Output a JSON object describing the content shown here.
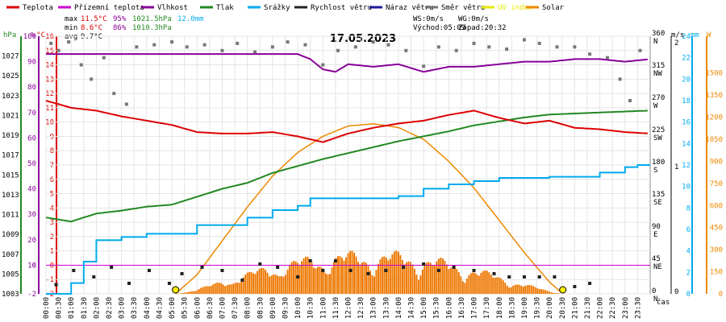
{
  "legend": [
    {
      "label": "Teplota",
      "color": "#dd0000"
    },
    {
      "label": "Přízemní teplota",
      "color": "#cc00cc"
    },
    {
      "label": "Vlhkost",
      "color": "#880099"
    },
    {
      "label": "Tlak",
      "color": "#228822"
    },
    {
      "label": "Srážky",
      "color": "#00aaee"
    },
    {
      "label": "Rychlost větru",
      "color": "#222222"
    },
    {
      "label": "Náraz větru",
      "color": "#1a1a9e"
    },
    {
      "label": "Směr větru",
      "color": "#777777"
    },
    {
      "label": "UV index",
      "color": "#e8e800"
    },
    {
      "label": "Solar",
      "color": "#ee8800"
    }
  ],
  "stats": {
    "max_label": "max",
    "max_temp": "11.5°C",
    "max_hum": "95%",
    "max_press": "1021.5hPa",
    "max_rain": "12.0mm",
    "min_label": "min",
    "min_temp": "8.6°C",
    "min_hum": "86%",
    "min_press": "1010.3hPa",
    "avg_label": "avg",
    "avg_temp": "9.7°C"
  },
  "info": {
    "ws": "WS:0m/s",
    "wg": "WG:0m/s",
    "sunrise": "Východ:05:09",
    "sunset": "Západ:20:32"
  },
  "chart_data": {
    "type": "line",
    "title": "17.05.2023",
    "x_unit_label": "čas",
    "x_ticks": [
      "00:00",
      "00:30",
      "01:00",
      "01:30",
      "02:00",
      "02:30",
      "03:00",
      "03:30",
      "04:00",
      "04:30",
      "05:00",
      "05:30",
      "06:00",
      "06:30",
      "07:00",
      "07:30",
      "08:00",
      "08:30",
      "09:00",
      "09:30",
      "10:00",
      "10:30",
      "11:00",
      "11:30",
      "12:00",
      "12:30",
      "13:00",
      "13:30",
      "14:00",
      "14:30",
      "15:00",
      "15:30",
      "16:00",
      "16:30",
      "17:00",
      "17:30",
      "18:00",
      "18:30",
      "19:00",
      "19:30",
      "20:00",
      "20:30",
      "21:00",
      "21:30",
      "22:00",
      "22:30",
      "23:00",
      "23:30"
    ],
    "axes": {
      "pressure": {
        "unit": "hPa",
        "ticks": [
          "1003",
          "1005",
          "1007",
          "1009",
          "1011",
          "1013",
          "1015",
          "1017",
          "1019",
          "1021",
          "1023",
          "1025",
          "1027"
        ],
        "range": [
          1003,
          1029
        ]
      },
      "humidity": {
        "unit": "%",
        "ticks": [
          "-2",
          "0",
          "10",
          "20",
          "30",
          "40",
          "50",
          "60",
          "70",
          "80",
          "90",
          "100"
        ]
      },
      "temperature": {
        "unit": "°C",
        "ticks": [
          "-2",
          "-1",
          "0",
          "1",
          "2",
          "3",
          "4",
          "5",
          "6",
          "7",
          "8",
          "9",
          "10",
          "11",
          "12",
          "13",
          "14",
          "15",
          "16"
        ],
        "range": [
          -2,
          16
        ]
      },
      "wind_dir": {
        "unit": "°",
        "ticks": [
          "0",
          "45",
          "90",
          "135",
          "180",
          "225",
          "270",
          "315",
          "360"
        ],
        "labels": [
          "N",
          "NE",
          "E",
          "SE",
          "S",
          "SW",
          "W",
          "NW",
          "N"
        ],
        "range": [
          0,
          360
        ]
      },
      "wind_speed": {
        "unit": "m/s",
        "ticks": [
          "0",
          "1",
          "2"
        ]
      },
      "rain": {
        "unit": "mm",
        "ticks": [
          "0",
          "2",
          "4",
          "6",
          "8",
          "10",
          "12",
          "14",
          "16",
          "18",
          "20",
          "22",
          "24"
        ],
        "range": [
          0,
          24
        ]
      },
      "solar": {
        "unit": "W",
        "ticks": [
          "0",
          "150",
          "300",
          "450",
          "600",
          "750",
          "900",
          "1050",
          "1200",
          "1350",
          "1500"
        ],
        "range": [
          0,
          1750
        ]
      }
    },
    "series": [
      {
        "name": "Teplota",
        "unit": "°C",
        "color": "#dd0000",
        "x": [
          0,
          1,
          2,
          3,
          4,
          5,
          6,
          7,
          8,
          9,
          10,
          11,
          12,
          13,
          14,
          15,
          16,
          17,
          18,
          19,
          20,
          21,
          22,
          23,
          24
        ],
        "values": [
          11.5,
          11.0,
          10.8,
          10.4,
          10.1,
          9.8,
          9.3,
          9.2,
          9.2,
          9.3,
          9.0,
          8.6,
          9.2,
          9.6,
          9.9,
          10.1,
          10.5,
          10.8,
          10.3,
          9.9,
          10.1,
          9.6,
          9.5,
          9.3,
          9.2
        ]
      },
      {
        "name": "Vlhkost",
        "unit": "%",
        "color": "#880099",
        "x": [
          0,
          2,
          4,
          6,
          8,
          10,
          10.5,
          11,
          11.5,
          12,
          13,
          14,
          15,
          16,
          17,
          18,
          19,
          20,
          21,
          22,
          23,
          24
        ],
        "values": [
          93,
          93,
          93,
          93,
          93,
          93,
          91,
          87,
          86,
          89,
          88,
          89,
          86,
          88,
          88,
          89,
          90,
          90,
          91,
          91,
          90,
          91
        ]
      },
      {
        "name": "Tlak",
        "unit": "hPa",
        "color": "#228822",
        "x": [
          0,
          1,
          2,
          3,
          4,
          5,
          6,
          7,
          8,
          9,
          10,
          11,
          12,
          13,
          14,
          15,
          16,
          17,
          18,
          19,
          20,
          21,
          22,
          23,
          24
        ],
        "values": [
          1010.7,
          1010.3,
          1011.1,
          1011.4,
          1011.8,
          1012.0,
          1012.8,
          1013.6,
          1014.2,
          1015.2,
          1015.9,
          1016.6,
          1017.2,
          1017.8,
          1018.4,
          1018.9,
          1019.4,
          1020.0,
          1020.4,
          1020.8,
          1021.1,
          1021.2,
          1021.3,
          1021.4,
          1021.5
        ]
      },
      {
        "name": "Srážky",
        "unit": "mm",
        "color": "#00aaee",
        "x": [
          0,
          1,
          1.5,
          2,
          3,
          4,
          6,
          8,
          9,
          10,
          10.5,
          11,
          14,
          15,
          16,
          17,
          18,
          20,
          22,
          23,
          23.5,
          24
        ],
        "values": [
          0,
          1,
          3,
          5,
          5.3,
          5.6,
          6.4,
          7.1,
          7.8,
          8.2,
          8.9,
          8.9,
          9.1,
          9.8,
          10.2,
          10.5,
          10.8,
          10.9,
          11.3,
          11.8,
          12.0,
          12.0
        ]
      },
      {
        "name": "Solar",
        "unit": "W",
        "color": "#ee8800",
        "x": [
          5.15,
          6,
          7,
          8,
          9,
          10,
          11,
          12,
          13,
          14,
          15,
          16,
          17,
          18,
          19,
          20,
          20.53
        ],
        "values": [
          0,
          130,
          360,
          590,
          800,
          960,
          1070,
          1140,
          1155,
          1130,
          1050,
          900,
          720,
          500,
          280,
          80,
          0
        ]
      },
      {
        "name": "Směr větru",
        "unit": "°",
        "color": "#777777",
        "x": [
          0.2,
          0.5,
          0.9,
          1.4,
          1.8,
          2.3,
          2.7,
          3.2,
          3.6,
          4.3,
          5.0,
          5.6,
          6.3,
          7.0,
          7.6,
          8.3,
          9.0,
          9.6,
          10.3,
          11.0,
          11.6,
          12.3,
          13.0,
          13.6,
          14.3,
          15.0,
          15.6,
          16.3,
          17.0,
          17.6,
          18.3,
          19.0,
          19.6,
          20.3,
          21.0,
          21.6,
          22.3,
          22.8,
          23.2,
          23.6
        ],
        "values": [
          350,
          340,
          352,
          320,
          300,
          330,
          280,
          265,
          345,
          348,
          352,
          345,
          348,
          340,
          350,
          338,
          345,
          352,
          348,
          320,
          340,
          345,
          352,
          348,
          340,
          318,
          345,
          340,
          350,
          345,
          342,
          355,
          350,
          345,
          345,
          335,
          330,
          300,
          270,
          340
        ]
      },
      {
        "name": "Rychlost větru",
        "unit": "m/s",
        "color": "#222222",
        "x": [
          0.4,
          1.1,
          1.9,
          2.6,
          3.3,
          4.1,
          4.9,
          5.4,
          6.2,
          7.0,
          7.8,
          8.5,
          9.2,
          10.0,
          10.5,
          11.0,
          11.5,
          12.1,
          12.8,
          13.5,
          14.2,
          15.0,
          15.6,
          16.2,
          17.0,
          17.8,
          18.4,
          19.0,
          19.6,
          20.2,
          21.0,
          21.6
        ],
        "values": [
          0.08,
          0.3,
          0.2,
          0.35,
          0.1,
          0.3,
          0.1,
          0.25,
          0.35,
          0.3,
          0.15,
          0.4,
          0.35,
          0.2,
          0.45,
          0.3,
          0.45,
          0.3,
          0.25,
          0.3,
          0.35,
          0.4,
          0.3,
          0.35,
          0.3,
          0.25,
          0.2,
          0.2,
          0.2,
          0.2,
          0.05,
          0.1
        ]
      },
      {
        "name": "Přízemní teplota",
        "unit": "°C",
        "color": "#cc00cc",
        "x": [
          0,
          24
        ],
        "values": [
          0,
          0
        ]
      }
    ],
    "markers": [
      {
        "label": "Východ:05:09",
        "x": 5.15
      },
      {
        "label": "Západ:20:32",
        "x": 20.53
      }
    ],
    "grid": true
  }
}
